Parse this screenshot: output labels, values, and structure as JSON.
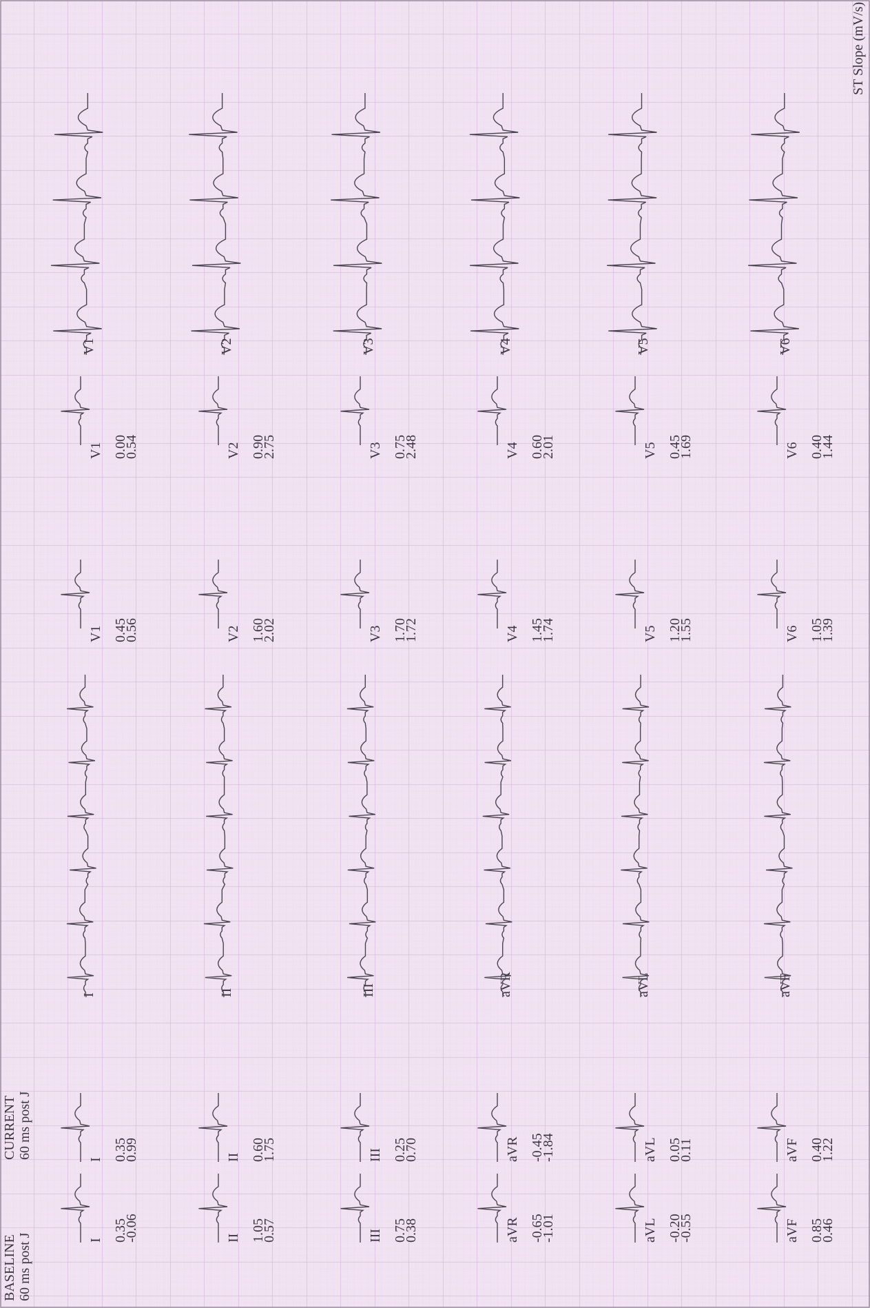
{
  "header": {
    "baseline_title": "BASELINE",
    "baseline_subtitle": "60 ms post J",
    "current_title": "CURRENT",
    "current_subtitle": "60 ms post J",
    "st_slope_label": "ST Slope (mV/s)"
  },
  "limb_leads": {
    "baseline": [
      {
        "lead": "I",
        "values": [
          "0.35",
          "-0.06"
        ]
      },
      {
        "lead": "II",
        "values": [
          "1.05",
          "0.57"
        ]
      },
      {
        "lead": "III",
        "values": [
          "0.75",
          "0.38"
        ]
      },
      {
        "lead": "aVR",
        "values": [
          "-0.65",
          "-1.01"
        ]
      },
      {
        "lead": "aVL",
        "values": [
          "-0.20",
          "-0.55"
        ]
      },
      {
        "lead": "aVF",
        "values": [
          "0.85",
          "0.46"
        ]
      }
    ],
    "current": [
      {
        "lead": "I",
        "values": [
          "0.35",
          "0.99"
        ]
      },
      {
        "lead": "II",
        "values": [
          "0.60",
          "1.75"
        ]
      },
      {
        "lead": "III",
        "values": [
          "0.25",
          "0.70"
        ]
      },
      {
        "lead": "aVR",
        "values": [
          "-0.45",
          "-1.84"
        ]
      },
      {
        "lead": "aVL",
        "values": [
          "0.05",
          "0.11"
        ]
      },
      {
        "lead": "aVF",
        "values": [
          "0.40",
          "1.22"
        ]
      }
    ],
    "rhythm": [
      "I",
      "II",
      "III",
      "aVR",
      "aVL",
      "aVF"
    ]
  },
  "chest_leads": {
    "baseline": [
      {
        "lead": "V1",
        "values": [
          "0.45",
          "0.56"
        ]
      },
      {
        "lead": "V2",
        "values": [
          "1.60",
          "2.02"
        ]
      },
      {
        "lead": "V3",
        "values": [
          "1.70",
          "1.72"
        ]
      },
      {
        "lead": "V4",
        "values": [
          "1.45",
          "1.74"
        ]
      },
      {
        "lead": "V5",
        "values": [
          "1.20",
          "1.55"
        ]
      },
      {
        "lead": "V6",
        "values": [
          "1.05",
          "1.39"
        ]
      }
    ],
    "current": [
      {
        "lead": "V1",
        "values": [
          "0.00",
          "0.54"
        ]
      },
      {
        "lead": "V2",
        "values": [
          "0.90",
          "2.75"
        ]
      },
      {
        "lead": "V3",
        "values": [
          "0.75",
          "2.48"
        ]
      },
      {
        "lead": "V4",
        "values": [
          "0.60",
          "2.01"
        ]
      },
      {
        "lead": "V5",
        "values": [
          "0.45",
          "1.69"
        ]
      },
      {
        "lead": "V6",
        "values": [
          "0.40",
          "1.44"
        ]
      }
    ],
    "rhythm": [
      "V1",
      "V2",
      "V3",
      "V4",
      "V5",
      "V6"
    ]
  }
}
